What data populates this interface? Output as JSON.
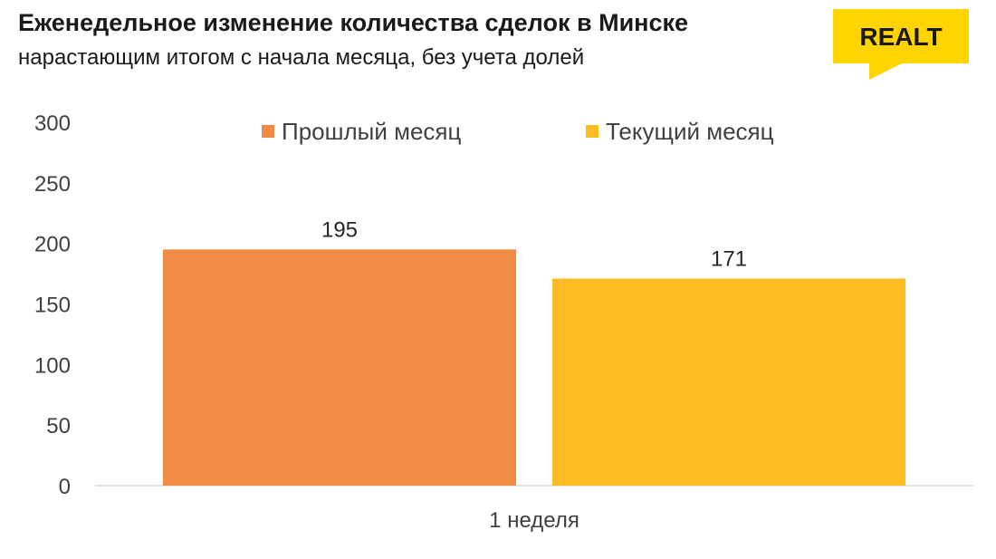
{
  "header": {
    "title": "Еженедельное изменение количества сделок в Минске",
    "subtitle": "нарастающим итогом с начала месяца, без учета долей"
  },
  "logo": {
    "text": "REALT",
    "background": "#FFD400",
    "text_color": "#1a1a1a"
  },
  "chart_data": {
    "type": "bar",
    "categories": [
      "1 неделя"
    ],
    "series": [
      {
        "name": "Прошлый месяц",
        "values": [
          195
        ],
        "color": "#EF8B44"
      },
      {
        "name": "Текущий месяц",
        "values": [
          171
        ],
        "color": "#FFBB22"
      }
    ],
    "data_labels": [
      "195",
      "171"
    ],
    "ylim": [
      0,
      300
    ],
    "yticks": [
      0,
      50,
      100,
      150,
      200,
      250,
      300
    ],
    "ytick_labels": [
      "0",
      "50",
      "100",
      "150",
      "200",
      "250",
      "300"
    ],
    "legend_position": "top",
    "grid": false
  }
}
